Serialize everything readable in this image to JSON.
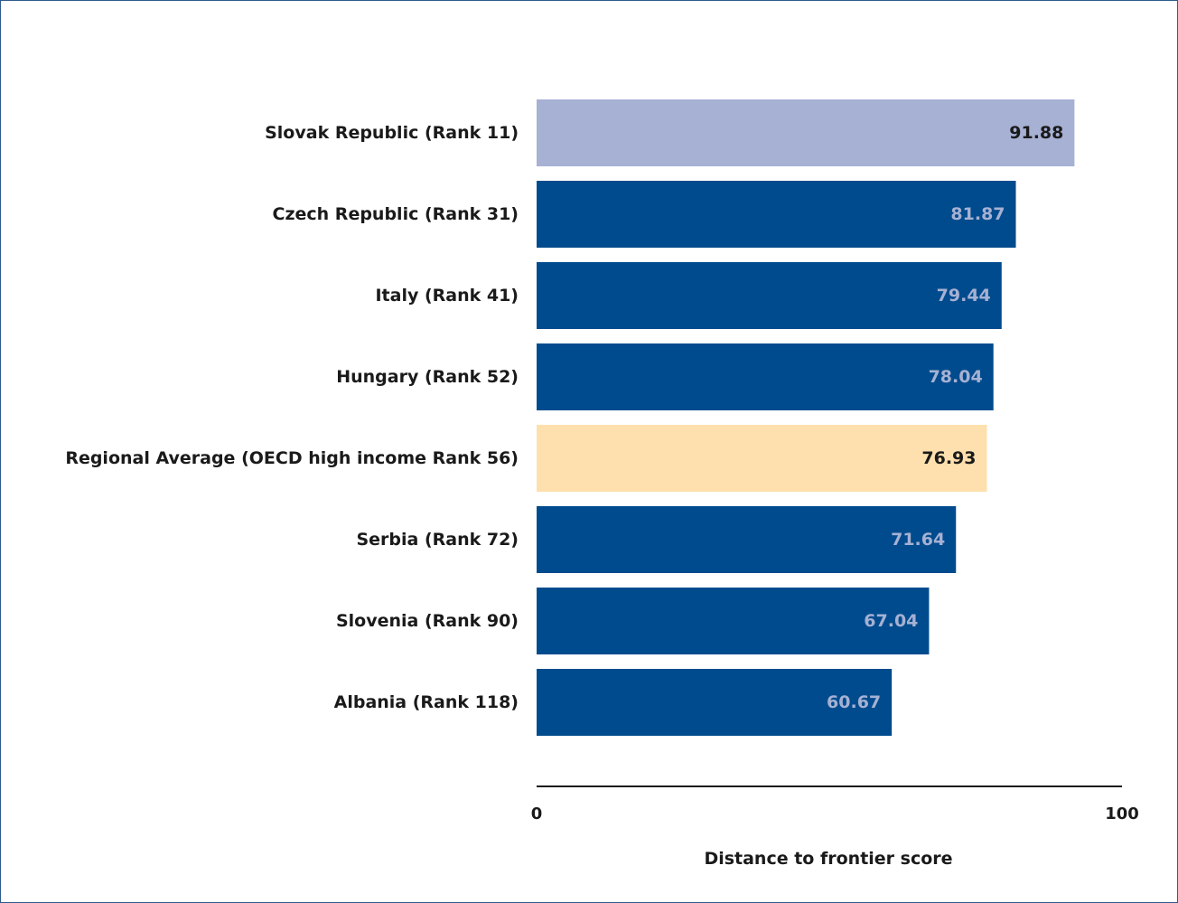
{
  "chart_data": {
    "type": "bar",
    "orientation": "horizontal",
    "categories": [
      "Slovak Republic (Rank 11)",
      "Czech Republic (Rank 31)",
      "Italy (Rank 41)",
      "Hungary (Rank 52)",
      "Regional Average (OECD high income Rank 56)",
      "Serbia (Rank 72)",
      "Slovenia (Rank 90)",
      "Albania (Rank 118)"
    ],
    "values": [
      91.88,
      81.87,
      79.44,
      78.04,
      76.93,
      71.64,
      67.04,
      60.67
    ],
    "value_labels": [
      "91.88",
      "81.87",
      "79.44",
      "78.04",
      "76.93",
      "71.64",
      "67.04",
      "60.67"
    ],
    "bar_colors": [
      "#a6b1d3",
      "#004b8d",
      "#004b8d",
      "#004b8d",
      "#fde0ad",
      "#004b8d",
      "#004b8d",
      "#004b8d"
    ],
    "value_label_colors": [
      "#1a1a1a",
      "#a6b1d3",
      "#a6b1d3",
      "#a6b1d3",
      "#1a1a1a",
      "#a6b1d3",
      "#a6b1d3",
      "#a6b1d3"
    ],
    "xlim": [
      0,
      100
    ],
    "x_ticks": [
      "0",
      "100"
    ],
    "xlabel": "Distance to frontier score",
    "title": "",
    "ylabel": "",
    "grid": false,
    "legend": "none"
  }
}
